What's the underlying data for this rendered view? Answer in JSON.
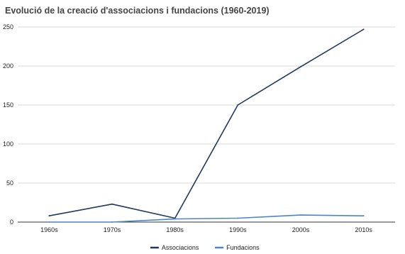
{
  "chart_data": {
    "type": "line",
    "title": "Evolució de la creació d'associacions i fundacions (1960-2019)",
    "xlabel": "",
    "ylabel": "",
    "categories": [
      "1960s",
      "1970s",
      "1980s",
      "1990s",
      "2000s",
      "2010s"
    ],
    "series": [
      {
        "name": "Associacions",
        "values": [
          8,
          23,
          5,
          150,
          199,
          247
        ],
        "color": "#1f3a5c"
      },
      {
        "name": "Fundacions",
        "values": [
          0,
          0,
          4,
          5,
          9,
          8
        ],
        "color": "#4a86c5"
      }
    ],
    "ylim": [
      0,
      250
    ],
    "yticks": [
      0,
      50,
      100,
      150,
      200,
      250
    ],
    "grid": true,
    "legend_position": "bottom"
  }
}
